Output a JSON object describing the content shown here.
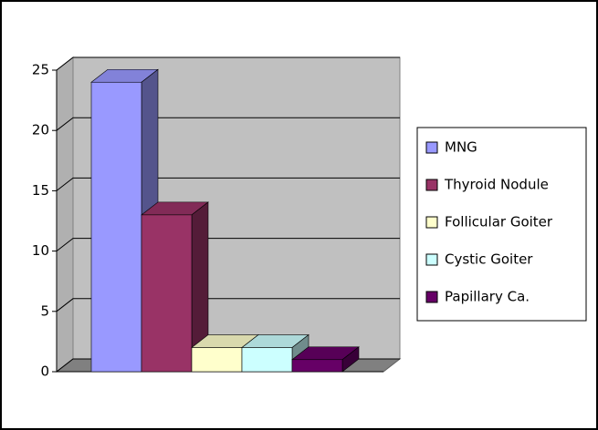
{
  "chart_data": {
    "type": "bar3d",
    "categories": [
      null
    ],
    "series": [
      {
        "name": "MNG",
        "color": "#9999ff",
        "values": [
          24
        ]
      },
      {
        "name": "Thyroid Nodule",
        "color": "#993366",
        "values": [
          13
        ]
      },
      {
        "name": "Follicular Goiter",
        "color": "#ffffcc",
        "values": [
          2
        ]
      },
      {
        "name": "Cystic Goiter",
        "color": "#ccffff",
        "values": [
          2
        ]
      },
      {
        "name": "Papillary Ca.",
        "color": "#660066",
        "values": [
          1
        ]
      }
    ],
    "ylim": [
      0,
      25
    ],
    "yticks": [
      0,
      5,
      10,
      15,
      20,
      25
    ],
    "grid": true,
    "legend": "right"
  }
}
